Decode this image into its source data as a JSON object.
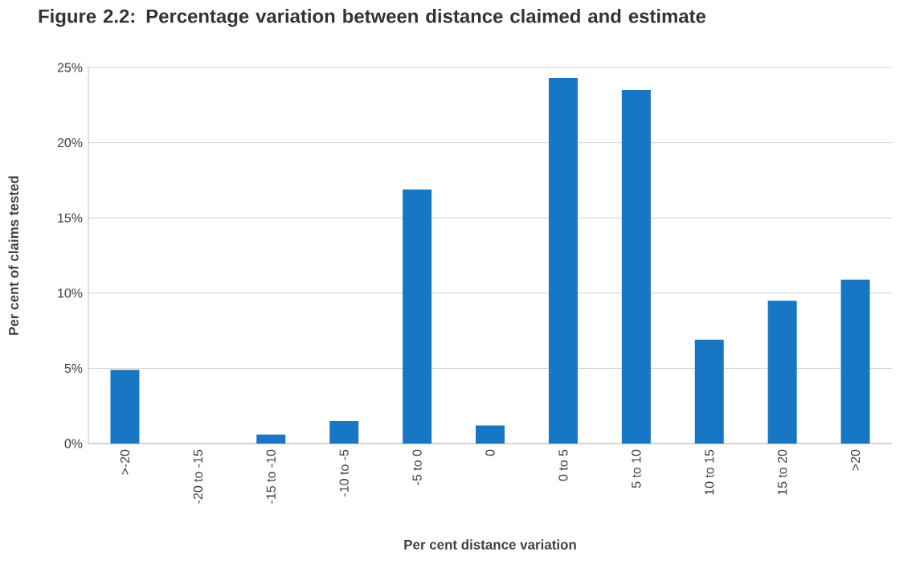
{
  "chart_data": {
    "type": "bar",
    "title": "Figure 2.2: Percentage variation between distance claimed and estimate",
    "xlabel": "Per cent distance variation",
    "ylabel": "Per cent of claims tested",
    "categories": [
      ">-20",
      "-20 to -15",
      "-15 to -10",
      "-10 to -5",
      "-5 to 0",
      "0",
      "0 to 5",
      "5 to 10",
      "10 to 15",
      "15 to 20",
      ">20"
    ],
    "values": [
      4.9,
      0,
      0.6,
      1.5,
      16.9,
      1.2,
      24.3,
      23.5,
      6.9,
      9.5,
      10.9
    ],
    "color": "#1777c4",
    "ylim": [
      0,
      25
    ],
    "yticks": [
      {
        "value": 0,
        "label": "0%"
      },
      {
        "value": 5,
        "label": "5%"
      },
      {
        "value": 10,
        "label": "10%"
      },
      {
        "value": 15,
        "label": "15%"
      },
      {
        "value": 20,
        "label": "20%"
      },
      {
        "value": 25,
        "label": "25%"
      }
    ],
    "grid": "y"
  }
}
